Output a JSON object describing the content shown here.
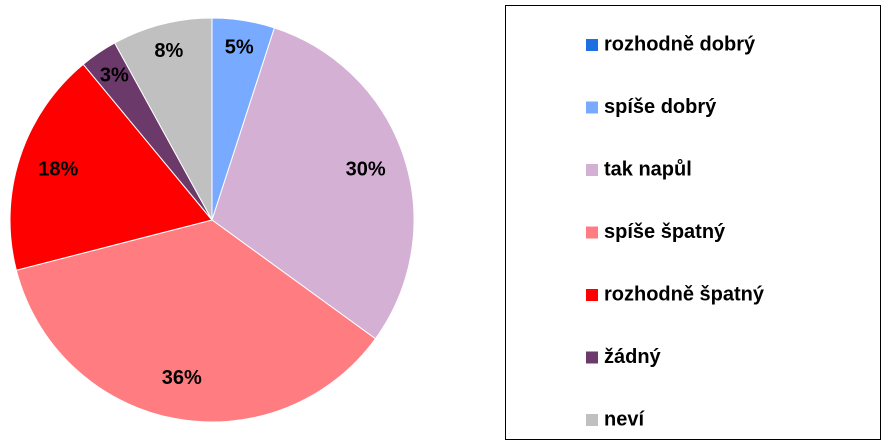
{
  "chart_data": {
    "type": "pie",
    "categories": [
      "rozhodně dobrý",
      "spíše dobrý",
      "tak napůl",
      "spíše špatný",
      "rozhodně špatný",
      "žádný",
      "neví"
    ],
    "values": [
      0,
      5,
      30,
      36,
      18,
      3,
      8
    ],
    "value_labels": [
      null,
      "5%",
      "30%",
      "36%",
      "18%",
      "3%",
      "8%"
    ],
    "colors": [
      "#1f6fe0",
      "#78aaff",
      "#d5b0d5",
      "#ff7c80",
      "#ff0000",
      "#6b3a6b",
      "#c0c0c0"
    ],
    "legend": "right"
  }
}
